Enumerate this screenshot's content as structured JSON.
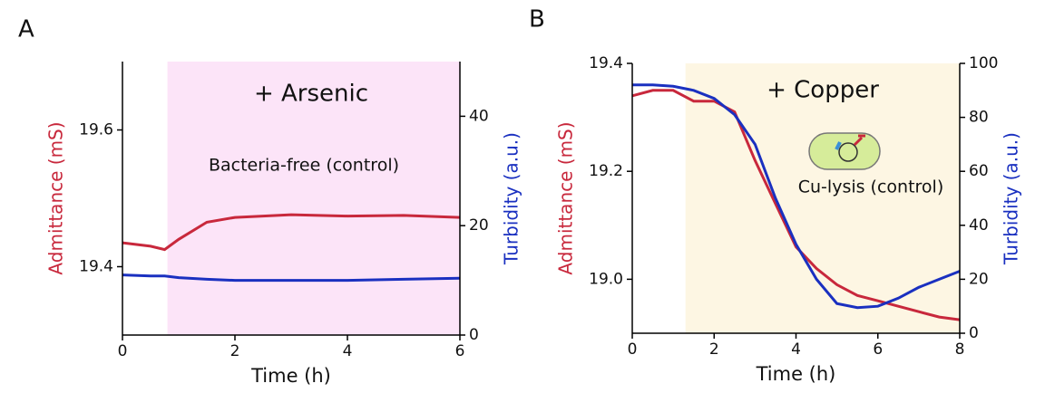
{
  "chart_data": [
    {
      "type": "line",
      "panel_label": "A",
      "x_label": "Time (h)",
      "y_label": "Admittance (mS)",
      "y2_label": "Turbidity (a.u.)",
      "annotations": [
        "+ Arsenic",
        "Bacteria-free (control)"
      ],
      "shade": {
        "from": 0.8,
        "color": "#fce4f8"
      },
      "x": [
        0,
        0.5,
        0.75,
        1,
        1.5,
        2,
        3,
        4,
        5,
        6
      ],
      "xlim": [
        0,
        6
      ],
      "xticks": [
        0,
        2,
        4,
        6
      ],
      "ylim": [
        19.3,
        19.7
      ],
      "yticks": [
        19.4,
        19.6
      ],
      "y2lim": [
        0,
        50
      ],
      "y2ticks": [
        0,
        20,
        40
      ],
      "series": [
        {
          "color": "#c8283c",
          "values": [
            19.435,
            19.43,
            19.425,
            19.44,
            19.465,
            19.472,
            19.476,
            19.474,
            19.475,
            19.472
          ]
        },
        {
          "color": "#1a30c0",
          "axis": "y2",
          "values": [
            11,
            10.8,
            10.8,
            10.5,
            10.2,
            10,
            10,
            10,
            10.2,
            10.4
          ]
        }
      ]
    },
    {
      "type": "line",
      "panel_label": "B",
      "x_label": "Time (h)",
      "y_label": "Admittance (mS)",
      "y2_label": "Turbidity (a.u.)",
      "annotations": [
        "+ Copper",
        "Cu-lysis (control)"
      ],
      "shade": {
        "from": 1.3,
        "color": "#fdf6e3"
      },
      "x": [
        0,
        0.5,
        1,
        1.5,
        2,
        2.5,
        3,
        3.5,
        4,
        4.5,
        5,
        5.5,
        6,
        6.5,
        7,
        7.5,
        8
      ],
      "xlim": [
        0,
        8
      ],
      "xticks": [
        0,
        2,
        4,
        6,
        8
      ],
      "ylim": [
        18.9,
        19.4
      ],
      "yticks": [
        {
          "value": 19,
          "label": "19.0"
        },
        19.2,
        19.4
      ],
      "y2lim": [
        0,
        100
      ],
      "y2ticks": [
        0,
        20,
        40,
        60,
        80,
        100
      ],
      "series": [
        {
          "color": "#c8283c",
          "values": [
            19.34,
            19.35,
            19.35,
            19.33,
            19.33,
            19.31,
            19.22,
            19.14,
            19.06,
            19.02,
            18.99,
            18.97,
            18.96,
            18.95,
            18.94,
            18.93,
            18.925
          ]
        },
        {
          "color": "#1a30c0",
          "axis": "y2",
          "values": [
            92,
            92,
            91.5,
            90,
            87,
            81,
            70,
            50,
            33,
            20,
            11,
            9.5,
            10,
            13,
            17,
            20,
            23
          ]
        }
      ]
    }
  ]
}
